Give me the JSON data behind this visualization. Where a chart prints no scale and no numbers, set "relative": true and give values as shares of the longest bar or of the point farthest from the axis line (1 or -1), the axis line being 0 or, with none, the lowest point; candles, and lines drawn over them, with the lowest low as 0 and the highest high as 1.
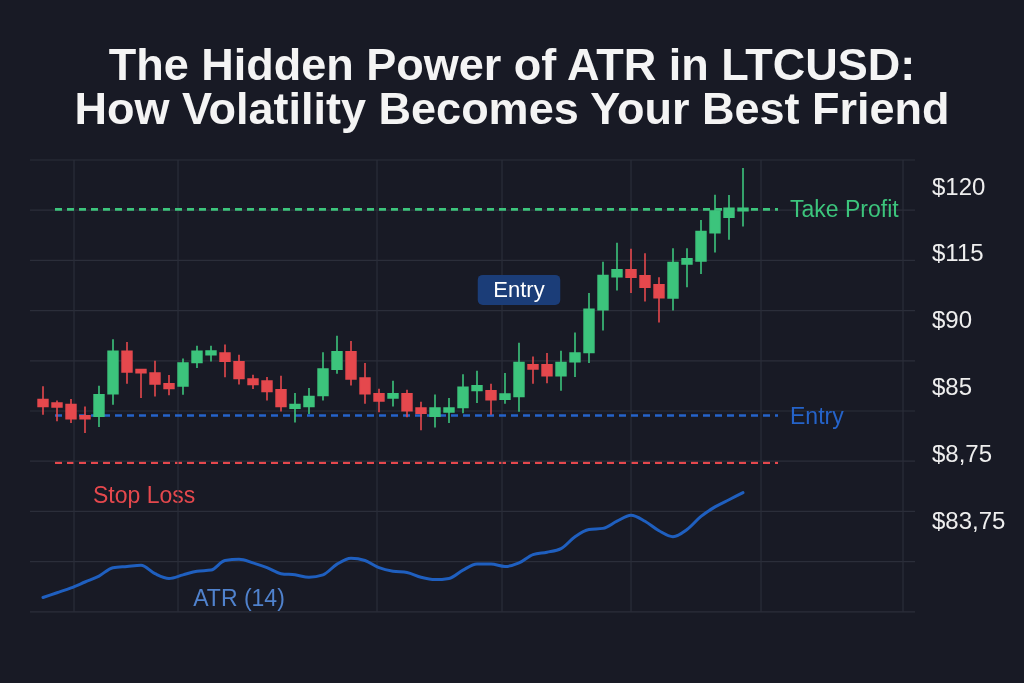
{
  "chart_data": [
    {
      "type": "candlestick",
      "title": "The Hidden Power of ATR in LTCUSD:\nHow Volatility Becomes Your Best Friend",
      "categories": [
        null,
        null,
        null,
        null,
        null,
        null,
        null,
        null,
        null,
        null,
        null,
        null,
        null,
        null,
        null,
        null,
        null,
        null,
        null,
        null,
        null,
        null,
        null,
        null,
        null,
        null,
        null,
        null,
        null,
        null,
        null,
        null,
        null,
        null,
        null,
        null,
        null,
        null,
        null,
        null,
        null,
        null,
        null,
        null,
        null,
        null,
        null,
        null,
        null,
        null,
        null
      ],
      "ohlc": [
        [
          0.126,
          0.176,
          0.069,
          0.1
        ],
        [
          0.113,
          0.123,
          0.044,
          0.098
        ],
        [
          0.107,
          0.128,
          0.038,
          0.054
        ],
        [
          0.065,
          0.1,
          0,
          0.054
        ],
        [
          0.063,
          0.178,
          0.023,
          0.144
        ],
        [
          0.148,
          0.354,
          0.107,
          0.308
        ],
        [
          0.308,
          0.343,
          0.186,
          0.23
        ],
        [
          0.239,
          0.239,
          0.132,
          0.228
        ],
        [
          0.226,
          0.273,
          0.138,
          0.185
        ],
        [
          0.186,
          0.219,
          0.142,
          0.168
        ],
        [
          0.178,
          0.281,
          0.144,
          0.264
        ],
        [
          0.266,
          0.329,
          0.245,
          0.308
        ],
        [
          0.295,
          0.329,
          0.27,
          0.309
        ],
        [
          0.302,
          0.334,
          0.21,
          0.271
        ],
        [
          0.269,
          0.295,
          0.183,
          0.206
        ],
        [
          0.204,
          0.22,
          0.166,
          0.183
        ],
        [
          0.196,
          0.211,
          0.123,
          0.157
        ],
        [
          0.163,
          0.216,
          0.081,
          0.1
        ],
        [
          0.094,
          0.151,
          0.04,
          0.107
        ],
        [
          0.1,
          0.17,
          0.072,
          0.138
        ],
        [
          0.142,
          0.305,
          0.123,
          0.241
        ],
        [
          0.241,
          0.367,
          0.224,
          0.306
        ],
        [
          0.306,
          0.347,
          0.179,
          0.204
        ],
        [
          0.207,
          0.264,
          0.11,
          0.148
        ],
        [
          0.148,
          0.167,
          0.078,
          0.121
        ],
        [
          0.132,
          0.197,
          0.1,
          0.148
        ],
        [
          0.148,
          0.163,
          0.059,
          0.084
        ],
        [
          0.094,
          0.118,
          0.01,
          0.075
        ],
        [
          0.063,
          0.145,
          0.021,
          0.094
        ],
        [
          0.079,
          0.132,
          0.038,
          0.094
        ],
        [
          0.096,
          0.222,
          0.075,
          0.172
        ],
        [
          0.161,
          0.235,
          0.113,
          0.178
        ],
        [
          0.159,
          0.186,
          0.069,
          0.126
        ],
        [
          0.128,
          0.226,
          0.11,
          0.147
        ],
        [
          0.138,
          0.341,
          0.08,
          0.266
        ],
        [
          0.257,
          0.289,
          0.186,
          0.242
        ],
        [
          0.257,
          0.302,
          0.188,
          0.216
        ],
        [
          0.216,
          0.31,
          0.159,
          0.266
        ],
        [
          0.269,
          0.379,
          0.211,
          0.302
        ],
        [
          0.304,
          0.528,
          0.264,
          0.467
        ],
        [
          0.465,
          0.646,
          0.387,
          0.594
        ],
        [
          0.59,
          0.718,
          0.538,
          0.616
        ],
        [
          0.616,
          0.695,
          0.528,
          0.588
        ],
        [
          0.593,
          0.678,
          0.496,
          0.55
        ],
        [
          0.559,
          0.588,
          0.417,
          0.511
        ],
        [
          0.51,
          0.697,
          0.462,
          0.643
        ],
        [
          0.638,
          0.697,
          0.55,
          0.657
        ],
        [
          0.649,
          0.804,
          0.6,
          0.76
        ],
        [
          0.756,
          0.899,
          0.681,
          0.838
        ],
        [
          0.814,
          0.898,
          0.729,
          0.848
        ],
        [
          0.839,
          1,
          0.779,
          0.848
        ]
      ],
      "colors": [
        "#e5484d",
        "#e5484d",
        "#e5484d",
        "#e5484d",
        "#3cc47c",
        "#3cc47c",
        "#e5484d",
        "#e5484d",
        "#e5484d",
        "#e5484d",
        "#3cc47c",
        "#3cc47c",
        "#3cc47c",
        "#e5484d",
        "#e5484d",
        "#e5484d",
        "#e5484d",
        "#e5484d",
        "#3cc47c",
        "#3cc47c",
        "#3cc47c",
        "#3cc47c",
        "#e5484d",
        "#e5484d",
        "#e5484d",
        "#3cc47c",
        "#e5484d",
        "#e5484d",
        "#3cc47c",
        "#3cc47c",
        "#3cc47c",
        "#3cc47c",
        "#e5484d",
        "#3cc47c",
        "#3cc47c",
        "#e5484d",
        "#e5484d",
        "#3cc47c",
        "#3cc47c",
        "#3cc47c",
        "#3cc47c",
        "#3cc47c",
        "#e5484d",
        "#e5484d",
        "#e5484d",
        "#3cc47c",
        "#3cc47c",
        "#3cc47c",
        "#3cc47c",
        "#3cc47c",
        "#3cc47c"
      ],
      "relative": true,
      "ref_lines": [
        {
          "axis": "y",
          "value": 0.844,
          "label": "Take Profit",
          "color": "#3cc47c",
          "line_style": "dashed"
        },
        {
          "axis": "y",
          "value": 0.066,
          "label": "Entry",
          "color": "#2563c9",
          "line_style": "dashed"
        },
        {
          "axis": "y",
          "value": -0.112,
          "label": "Stop Loss",
          "color": "#e5484d",
          "line_style": "dashed"
        }
      ],
      "annotations": [
        "Entry",
        "$120",
        "$115",
        "$90",
        "$85",
        "$8,75",
        "$83,75"
      ],
      "grid": true
    },
    {
      "type": "line",
      "categories": [
        null,
        null,
        null,
        null,
        null,
        null,
        null,
        null,
        null,
        null,
        null,
        null,
        null,
        null,
        null,
        null,
        null,
        null,
        null,
        null,
        null,
        null,
        null,
        null,
        null,
        null,
        null,
        null,
        null,
        null,
        null,
        null,
        null,
        null,
        null,
        null,
        null,
        null,
        null,
        null,
        null,
        null,
        null,
        null,
        null,
        null,
        null,
        null,
        null,
        null,
        null
      ],
      "relative": true,
      "series": [
        {
          "name": "ATR (14)",
          "color": "#1f5fbf",
          "values": [
            0.12,
            0.16,
            0.2,
            0.25,
            0.3,
            0.37,
            0.38,
            0.39,
            0.32,
            0.28,
            0.31,
            0.34,
            0.35,
            0.43,
            0.44,
            0.41,
            0.37,
            0.32,
            0.31,
            0.29,
            0.31,
            0.4,
            0.45,
            0.43,
            0.37,
            0.34,
            0.33,
            0.29,
            0.27,
            0.28,
            0.35,
            0.4,
            0.4,
            0.38,
            0.41,
            0.48,
            0.5,
            0.53,
            0.63,
            0.69,
            0.7,
            0.76,
            0.81,
            0.76,
            0.68,
            0.63,
            0.69,
            0.8,
            0.88,
            0.94,
            1
          ]
        }
      ],
      "grid": true
    }
  ]
}
